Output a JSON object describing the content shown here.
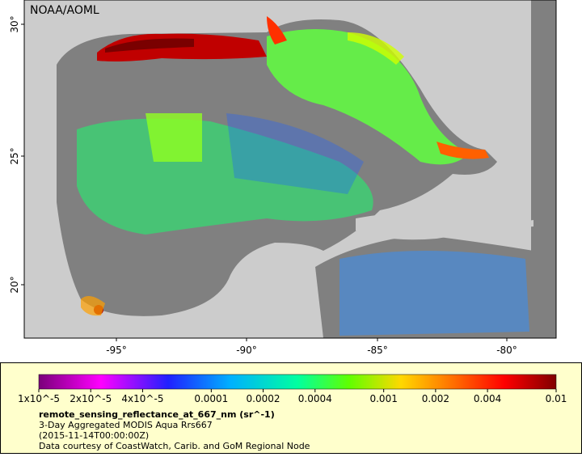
{
  "map": {
    "credit": "NOAA/AOML",
    "lat_labels": [
      "30°",
      "25°",
      "20°"
    ],
    "lon_labels": [
      "-95°",
      "-90°",
      "-85°",
      "-80°"
    ]
  },
  "legend": {
    "colorbar": {
      "scale": "log",
      "lim": [
        1e-05,
        0.01
      ],
      "ticks": [
        {
          "value": 1e-05,
          "label": "1x10^-5"
        },
        {
          "value": 2e-05,
          "label": "2x10^-5"
        },
        {
          "value": 4e-05,
          "label": "4x10^-5"
        },
        0.0001,
        0.0002,
        0.0004,
        0.001,
        0.002,
        0.004,
        0.01
      ]
    },
    "variable": "remote_sensing_reflectance_at_667_nm (sr^-1)",
    "lines": [
      "3-Day Aggregated MODIS Aqua Rrs667",
      "(2015-11-14T00:00:00Z)",
      "Data courtesy of CoastWatch, Carib. and GoM Regional Node"
    ]
  }
}
